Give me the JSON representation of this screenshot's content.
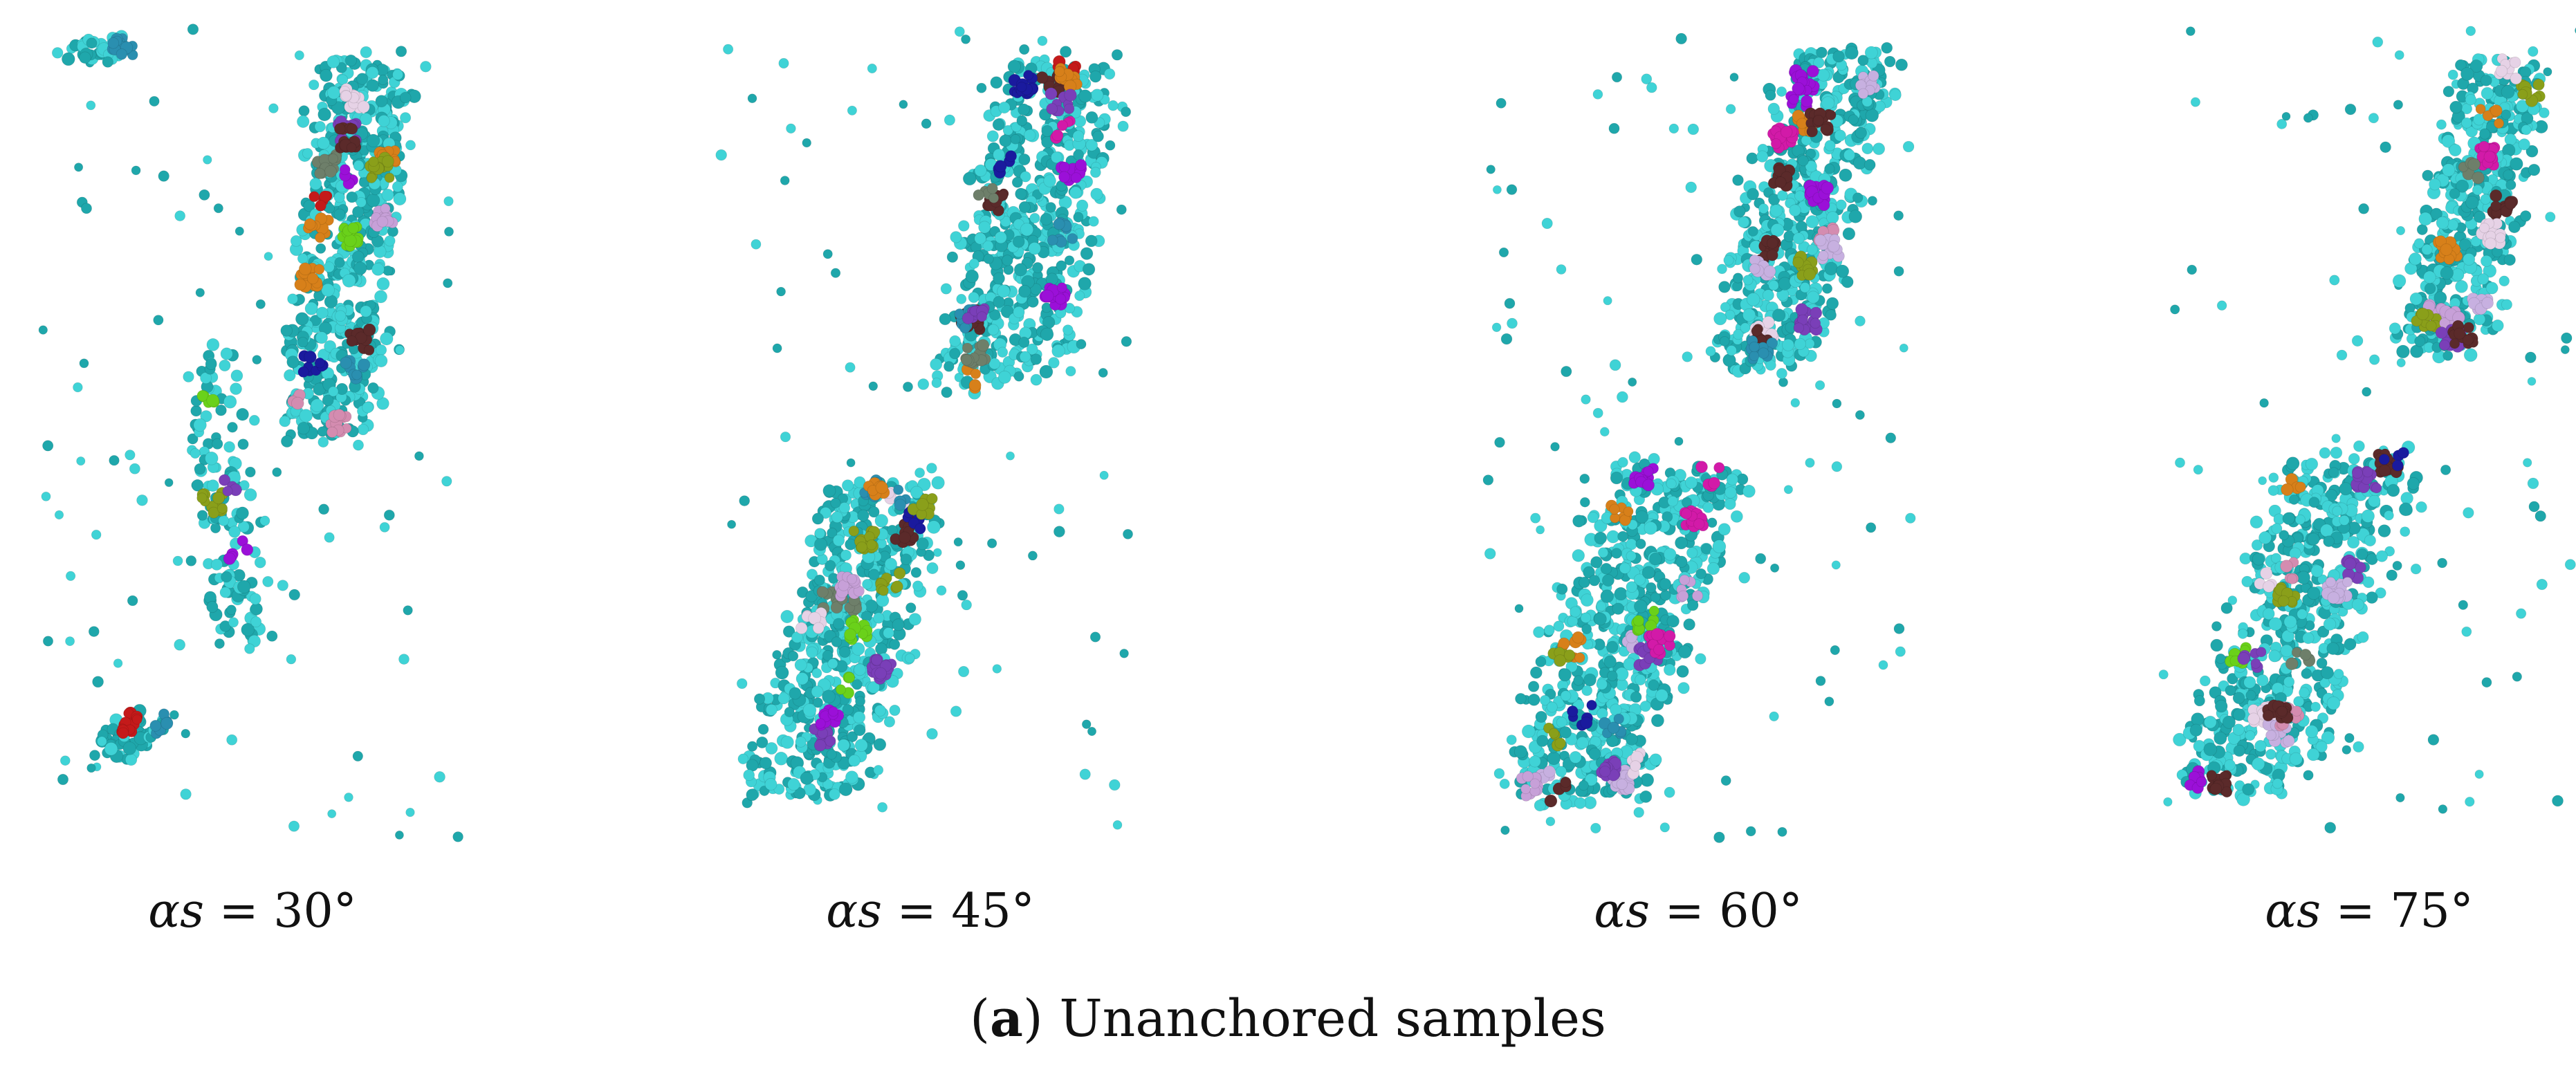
{
  "panels": [
    {
      "symbol": "αs",
      "equals": " = ",
      "angle": "30°"
    },
    {
      "symbol": "αs",
      "equals": " = ",
      "angle": "45°"
    },
    {
      "symbol": "αs",
      "equals": " = ",
      "angle": "60°"
    },
    {
      "symbol": "αs",
      "equals": " = ",
      "angle": "75°"
    }
  ],
  "caption": {
    "open": "(",
    "letter": "a",
    "close": ") ",
    "text": "Unanchored samples"
  },
  "colors": {
    "particle": "#3fd3d6",
    "particle_dark": "#1fa7ab",
    "fragments": [
      "#9b10d8",
      "#d48cb0",
      "#6e7f6a",
      "#d7801a",
      "#c7b0e0",
      "#1a1a9e",
      "#c41a1a",
      "#6ad11a",
      "#d21aa8",
      "#e6d2e6",
      "#8a9f1a",
      "#5b2a2a",
      "#2a8fb0",
      "#c7a0d8",
      "#7a3fb8"
    ]
  }
}
